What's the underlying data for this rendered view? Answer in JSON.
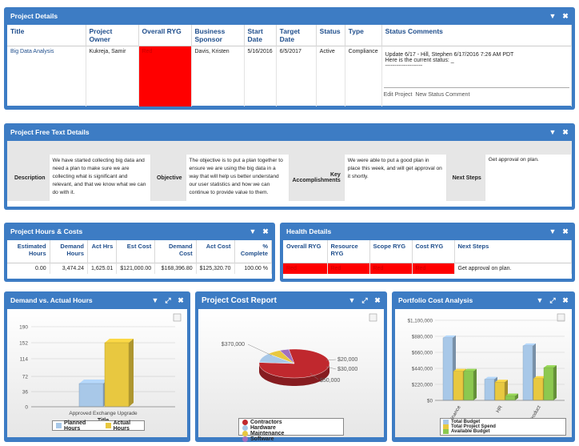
{
  "project_details": {
    "title": "Project Details",
    "headers": [
      "Title",
      "Project Owner",
      "Overall RYG",
      "Business Sponsor",
      "Start Date",
      "Target Date",
      "Status",
      "Type",
      "Status Comments"
    ],
    "row": {
      "title": "Big Data Analysis",
      "owner": "Kukreja, Samir",
      "ryg": "Red",
      "sponsor": "Davis, Kristen",
      "start": "5/16/2016",
      "target": "6/5/2017",
      "status": "Active",
      "type": "Compliance",
      "comment_line1": "Update 6/17 - Hill, Stephen 6/17/2016 7:26 AM PDT",
      "comment_line2": "Here is the current status: _",
      "comment_line3": "--------------------"
    },
    "edit_link": "Edit Project",
    "new_status_link": "New Status Comment"
  },
  "free_text": {
    "title": "Project Free Text Details",
    "description_label": "Description",
    "description": "We have started collecting big data and need a plan to make sure we are collecting what is significant and relevant, and that we know what we can do with it.",
    "objective_label": "Objective",
    "objective": "The objective is to put a plan together to ensure we are using the big data in a way that will help us better understand our user statistics and how we can continue to provide value to them.",
    "key_label": "Key Accomplishments",
    "key": "We were able to put a good plan in place this week, and will get approval on it shortly.",
    "next_label": "Next Steps",
    "next": "Get approval on plan."
  },
  "hours_costs": {
    "title": "Project Hours & Costs",
    "headers": [
      "Estimated Hours",
      "Demand Hours",
      "Act Hrs",
      "Est Cost",
      "Demand Cost",
      "Act Cost",
      "% Complete"
    ],
    "values": [
      "0.00",
      "3,474.24",
      "1,625.01",
      "$121,000.00",
      "$168,396.80",
      "$125,320.70",
      "100.00 %"
    ]
  },
  "health": {
    "title": "Health Details",
    "headers": [
      "Overall RYG",
      "Resource RYG",
      "Scope RYG",
      "Cost RYG",
      "Next Steps"
    ],
    "values": [
      "Red",
      "Red",
      "Red",
      "Red"
    ],
    "next_steps": "Get approval on plan."
  },
  "demand_chart": {
    "title": "Demand vs. Actual Hours",
    "colors": {
      "planned": "#a8c8e8",
      "actual": "#e8c840"
    },
    "chart_data": {
      "type": "bar",
      "categories": [
        "Approved Exchange Upgrade"
      ],
      "series": [
        {
          "name": "Planned Hours",
          "values": [
            55
          ]
        },
        {
          "name": "Actual Hours",
          "values": [
            152
          ]
        }
      ],
      "xlabel": "Title",
      "ylabel": "",
      "yticks": [
        "0",
        "36",
        "72",
        "114",
        "152",
        "190"
      ],
      "ylim": [
        0,
        190
      ]
    }
  },
  "cost_report": {
    "title": "Project Cost Report",
    "colors": {
      "contractors": "#c0282e",
      "hardware": "#a8c8e8",
      "maintenance": "#e8c840",
      "software": "#a070c0"
    },
    "chart_data": {
      "type": "pie",
      "labels": [
        "Contractors",
        "Hardware",
        "Maintenance",
        "Software"
      ],
      "values": [
        370000,
        50000,
        30000,
        20000
      ],
      "value_labels": [
        "$370,000",
        "$50,000",
        "$30,000",
        "$20,000"
      ]
    }
  },
  "portfolio": {
    "title": "Portfolio Cost Analysis",
    "colors": {
      "total_budget": "#a8c8e8",
      "total_spend": "#e8c840",
      "available": "#8cc850"
    },
    "chart_data": {
      "type": "bar",
      "categories": [
        "Finance",
        "HR",
        "Product"
      ],
      "series": [
        {
          "name": "Total Budget",
          "values": [
            860000,
            290000,
            750000
          ]
        },
        {
          "name": "Total Project Spend",
          "values": [
            400000,
            250000,
            300000
          ]
        },
        {
          "name": "Available Budget",
          "values": [
            400000,
            60000,
            450000
          ]
        }
      ],
      "yticks": [
        "$0",
        "$220,000",
        "$440,000",
        "$660,000",
        "$880,000",
        "$1,100,000"
      ],
      "ylim": [
        0,
        1100000
      ]
    }
  }
}
